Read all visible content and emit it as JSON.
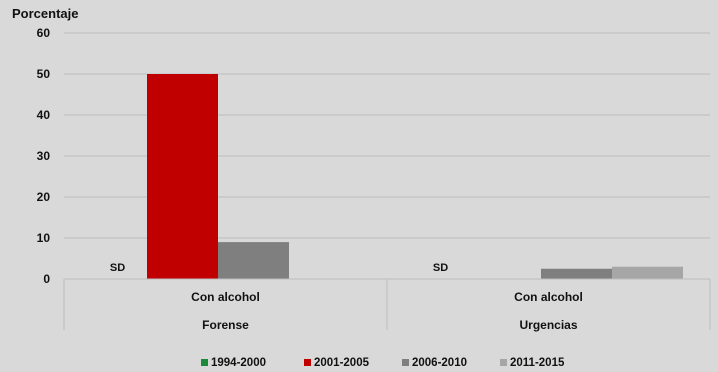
{
  "chart_data": {
    "type": "bar",
    "title": "",
    "ylabel": "Porcentaje",
    "xlabel": "",
    "ylim": [
      0,
      60
    ],
    "yticks": [
      0,
      10,
      20,
      30,
      40,
      50,
      60
    ],
    "grid": true,
    "legend_position": "bottom",
    "groups": [
      {
        "category": "Con alcohol",
        "group": "Forense",
        "annotation": "SD"
      },
      {
        "category": "Con alcohol",
        "group": "Urgencias",
        "annotation": "SD"
      }
    ],
    "series": [
      {
        "name": "1994-2000",
        "color": "#1a8a3a",
        "values": [
          null,
          null
        ]
      },
      {
        "name": "2001-2005",
        "color": "#c00000",
        "values": [
          50,
          null
        ]
      },
      {
        "name": "2006-2010",
        "color": "#7f7f7f",
        "values": [
          9,
          2.5
        ]
      },
      {
        "name": "2011-2015",
        "color": "#a6a6a6",
        "values": [
          null,
          3
        ]
      }
    ]
  }
}
